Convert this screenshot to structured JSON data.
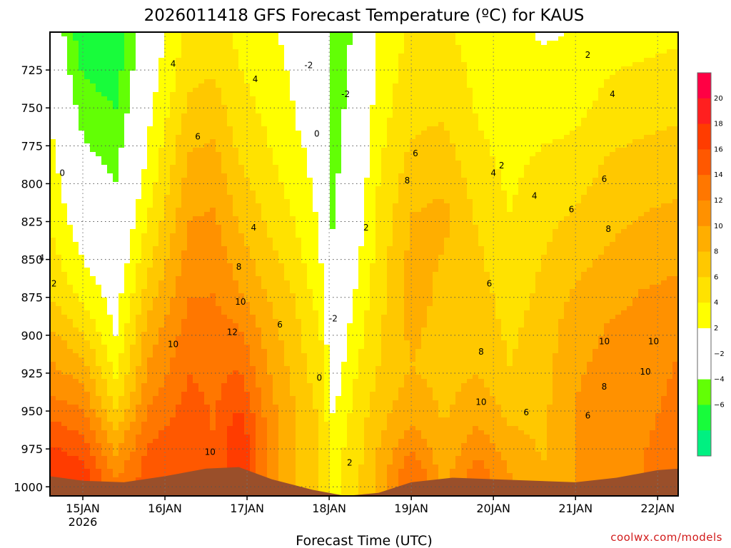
{
  "chart_data": {
    "type": "heatmap",
    "title": "2026011418 GFS Forecast Temperature (ºC) for KAUS",
    "xlabel": "Forecast Time (UTC)",
    "ylabel": "",
    "y_axis": {
      "reversed": true,
      "range": [
        700,
        1006
      ],
      "ticks": [
        725,
        750,
        775,
        800,
        825,
        850,
        875,
        900,
        925,
        950,
        975,
        1000
      ]
    },
    "x_axis": {
      "range": [
        -0.4,
        7.25
      ],
      "ticks": [
        {
          "value": 0,
          "label": "15JAN",
          "sublabel": "2026"
        },
        {
          "value": 1,
          "label": "16JAN",
          "sublabel": ""
        },
        {
          "value": 2,
          "label": "17JAN",
          "sublabel": ""
        },
        {
          "value": 3,
          "label": "18JAN",
          "sublabel": ""
        },
        {
          "value": 4,
          "label": "19JAN",
          "sublabel": ""
        },
        {
          "value": 5,
          "label": "20JAN",
          "sublabel": ""
        },
        {
          "value": 6,
          "label": "21JAN",
          "sublabel": ""
        },
        {
          "value": 7,
          "label": "22JAN",
          "sublabel": ""
        }
      ]
    },
    "grid": true,
    "legend": "right colorbar",
    "colorbar": [
      {
        "from": -8,
        "to": -6,
        "color": "#00f081"
      },
      {
        "from": -6,
        "to": -4,
        "color": "#18fc3b"
      },
      {
        "from": -4,
        "to": -2,
        "color": "#62ff05"
      },
      {
        "from": -2,
        "to": 0,
        "color": "#ffffff"
      },
      {
        "from": 0,
        "to": 2,
        "color": "#ffffff"
      },
      {
        "from": 2,
        "to": 4,
        "color": "#ffff00"
      },
      {
        "from": 4,
        "to": 6,
        "color": "#ffe200"
      },
      {
        "from": 6,
        "to": 8,
        "color": "#ffc800"
      },
      {
        "from": 8,
        "to": 10,
        "color": "#ffae00"
      },
      {
        "from": 10,
        "to": 12,
        "color": "#ff9100"
      },
      {
        "from": 12,
        "to": 14,
        "color": "#ff7700"
      },
      {
        "from": 14,
        "to": 16,
        "color": "#ff5800"
      },
      {
        "from": 16,
        "to": 18,
        "color": "#ff3c00"
      },
      {
        "from": 18,
        "to": 20,
        "color": "#ff1f1f"
      },
      {
        "from": 20,
        "to": 22,
        "color": "#ff0044"
      }
    ],
    "colorbar_labels": [
      "20",
      "18",
      "16",
      "14",
      "12",
      "10",
      "8",
      "6",
      "4",
      "2",
      "−2",
      "−4",
      "−6"
    ],
    "ground_color": "#9a4f2a",
    "bands": [
      {
        "x": -0.4,
        "t": [
          3.8,
          6.0,
          9.0,
          11.5,
          14.5,
          18.0
        ],
        "p": [
          825,
          875,
          905,
          935,
          960,
          990
        ]
      },
      {
        "x": 0.0,
        "t": [
          2.5,
          5.0,
          8.0,
          11.0,
          14.0,
          17.0
        ],
        "p": [
          860,
          890,
          915,
          940,
          965,
          990
        ]
      },
      {
        "x": 0.4,
        "t": [
          2.0,
          4.0,
          6.0,
          8.5,
          10.0,
          12.0
        ],
        "p": [
          900,
          930,
          950,
          965,
          980,
          995
        ]
      },
      {
        "x": 0.8,
        "t": [
          3.0,
          6.0,
          9.0,
          11.0,
          13.0,
          15.0
        ],
        "p": [
          800,
          860,
          900,
          935,
          960,
          985
        ]
      },
      {
        "x": 1.3,
        "t": [
          6.0,
          9.0,
          11.0,
          13.0,
          14.5,
          16.0
        ],
        "p": [
          740,
          800,
          850,
          900,
          940,
          975
        ]
      },
      {
        "x": 1.6,
        "t": [
          6.0,
          9.0,
          11.0,
          12.5,
          13.5,
          14.0
        ],
        "p": [
          730,
          790,
          840,
          890,
          930,
          970
        ]
      },
      {
        "x": 1.9,
        "t": [
          5.0,
          8.0,
          10.0,
          12.5,
          15.0,
          18.0
        ],
        "p": [
          760,
          830,
          870,
          900,
          935,
          970
        ]
      },
      {
        "x": 2.3,
        "t": [
          4.0,
          6.0,
          8.0,
          9.5,
          10.5,
          11.0
        ],
        "p": [
          780,
          840,
          880,
          920,
          950,
          980
        ]
      },
      {
        "x": 2.6,
        "t": [
          2.0,
          4.0,
          6.0,
          7.0,
          8.0,
          8.0
        ],
        "p": [
          760,
          830,
          880,
          920,
          950,
          980
        ]
      },
      {
        "x": 2.9,
        "t": [
          0.5,
          2.0,
          4.0,
          5.0,
          6.0,
          6.0
        ],
        "p": [
          750,
          850,
          900,
          935,
          965,
          990
        ]
      },
      {
        "x": 3.05,
        "t": [
          -3.0,
          -2.0,
          -0.5,
          1.0,
          2.5,
          3.5
        ],
        "p": [
          750,
          850,
          900,
          935,
          965,
          990
        ]
      },
      {
        "x": 3.3,
        "t": [
          -1.0,
          1.0,
          3.0,
          4.0,
          5.0,
          5.0
        ],
        "p": [
          760,
          850,
          900,
          935,
          965,
          990
        ]
      },
      {
        "x": 3.6,
        "t": [
          3.0,
          4.0,
          5.0,
          6.0,
          7.5,
          8.5
        ],
        "p": [
          750,
          800,
          860,
          920,
          960,
          990
        ]
      },
      {
        "x": 4.0,
        "t": [
          6.0,
          8.0,
          9.0,
          8.0,
          10.0,
          14.0
        ],
        "p": [
          770,
          820,
          870,
          920,
          960,
          990
        ]
      },
      {
        "x": 4.4,
        "t": [
          6.0,
          8.5,
          7.5,
          7.0,
          8.0,
          9.0
        ],
        "p": [
          760,
          820,
          870,
          920,
          960,
          990
        ]
      },
      {
        "x": 4.8,
        "t": [
          4.0,
          6.0,
          7.0,
          8.0,
          10.0,
          13.0
        ],
        "p": [
          760,
          830,
          880,
          925,
          960,
          990
        ]
      },
      {
        "x": 5.2,
        "t": [
          3.0,
          4.0,
          5.0,
          6.0,
          8.0,
          10.0
        ],
        "p": [
          760,
          820,
          870,
          920,
          960,
          990
        ]
      },
      {
        "x": 5.6,
        "t": [
          3.0,
          5.0,
          6.0,
          7.0,
          7.5,
          8.0
        ],
        "p": [
          750,
          800,
          850,
          900,
          950,
          990
        ]
      },
      {
        "x": 6.0,
        "t": [
          3.0,
          5.0,
          7.0,
          9.0,
          10.0,
          10.0
        ],
        "p": [
          740,
          790,
          840,
          890,
          940,
          990
        ]
      },
      {
        "x": 6.4,
        "t": [
          4.0,
          6.0,
          8.0,
          10.0,
          11.0,
          11.0
        ],
        "p": [
          730,
          780,
          840,
          890,
          940,
          990
        ]
      },
      {
        "x": 6.8,
        "t": [
          4.0,
          6.0,
          8.0,
          10.0,
          11.0,
          12.0
        ],
        "p": [
          720,
          770,
          820,
          870,
          920,
          985
        ]
      },
      {
        "x": 7.25,
        "t": [
          4.0,
          6.0,
          8.0,
          10.0,
          12.0,
          13.0
        ],
        "p": [
          710,
          760,
          810,
          860,
          910,
          980
        ]
      }
    ],
    "ground": [
      {
        "x": -0.4,
        "p": 993
      },
      {
        "x": 0.0,
        "p": 996
      },
      {
        "x": 0.5,
        "p": 997
      },
      {
        "x": 1.0,
        "p": 993
      },
      {
        "x": 1.5,
        "p": 988
      },
      {
        "x": 1.9,
        "p": 987
      },
      {
        "x": 2.3,
        "p": 995
      },
      {
        "x": 2.8,
        "p": 1002
      },
      {
        "x": 3.2,
        "p": 1006
      },
      {
        "x": 3.6,
        "p": 1004
      },
      {
        "x": 4.0,
        "p": 997
      },
      {
        "x": 4.5,
        "p": 994
      },
      {
        "x": 5.0,
        "p": 995
      },
      {
        "x": 5.5,
        "p": 996
      },
      {
        "x": 6.0,
        "p": 997
      },
      {
        "x": 6.5,
        "p": 994
      },
      {
        "x": 7.0,
        "p": 989
      },
      {
        "x": 7.25,
        "p": 988
      }
    ],
    "contour_labels": [
      {
        "x": -0.25,
        "p": 793,
        "text": "0"
      },
      {
        "x": -0.5,
        "p": 849,
        "text": "4"
      },
      {
        "x": -0.35,
        "p": 866,
        "text": "2"
      },
      {
        "x": 1.1,
        "p": 721,
        "text": "4"
      },
      {
        "x": 1.4,
        "p": 769,
        "text": "6"
      },
      {
        "x": 2.1,
        "p": 731,
        "text": "4"
      },
      {
        "x": 2.08,
        "p": 829,
        "text": "4"
      },
      {
        "x": 1.9,
        "p": 855,
        "text": "8"
      },
      {
        "x": 1.92,
        "p": 878,
        "text": "10"
      },
      {
        "x": 1.82,
        "p": 898,
        "text": "12"
      },
      {
        "x": 2.4,
        "p": 893,
        "text": "6"
      },
      {
        "x": 1.1,
        "p": 906,
        "text": "10"
      },
      {
        "x": 1.55,
        "p": 977,
        "text": "10"
      },
      {
        "x": 2.75,
        "p": 722,
        "text": "-2"
      },
      {
        "x": 2.85,
        "p": 767,
        "text": "0"
      },
      {
        "x": 3.2,
        "p": 741,
        "text": "-2"
      },
      {
        "x": 3.45,
        "p": 829,
        "text": "2"
      },
      {
        "x": 3.05,
        "p": 889,
        "text": "-2"
      },
      {
        "x": 2.88,
        "p": 928,
        "text": "0"
      },
      {
        "x": 3.25,
        "p": 984,
        "text": "2"
      },
      {
        "x": 4.05,
        "p": 780,
        "text": "6"
      },
      {
        "x": 3.95,
        "p": 798,
        "text": "8"
      },
      {
        "x": 5.0,
        "p": 793,
        "text": "4"
      },
      {
        "x": 5.1,
        "p": 788,
        "text": "2"
      },
      {
        "x": 5.5,
        "p": 808,
        "text": "4"
      },
      {
        "x": 6.15,
        "p": 715,
        "text": "2"
      },
      {
        "x": 6.45,
        "p": 741,
        "text": "4"
      },
      {
        "x": 6.35,
        "p": 797,
        "text": "6"
      },
      {
        "x": 5.95,
        "p": 817,
        "text": "6"
      },
      {
        "x": 6.4,
        "p": 830,
        "text": "8"
      },
      {
        "x": 4.95,
        "p": 866,
        "text": "6"
      },
      {
        "x": 4.85,
        "p": 911,
        "text": "8"
      },
      {
        "x": 4.85,
        "p": 944,
        "text": "10"
      },
      {
        "x": 5.4,
        "p": 951,
        "text": "6"
      },
      {
        "x": 6.15,
        "p": 953,
        "text": "6"
      },
      {
        "x": 6.35,
        "p": 934,
        "text": "8"
      },
      {
        "x": 6.35,
        "p": 904,
        "text": "10"
      },
      {
        "x": 6.85,
        "p": 924,
        "text": "10"
      },
      {
        "x": 6.95,
        "p": 904,
        "text": "10"
      }
    ]
  },
  "credit": "coolwx.com/models"
}
